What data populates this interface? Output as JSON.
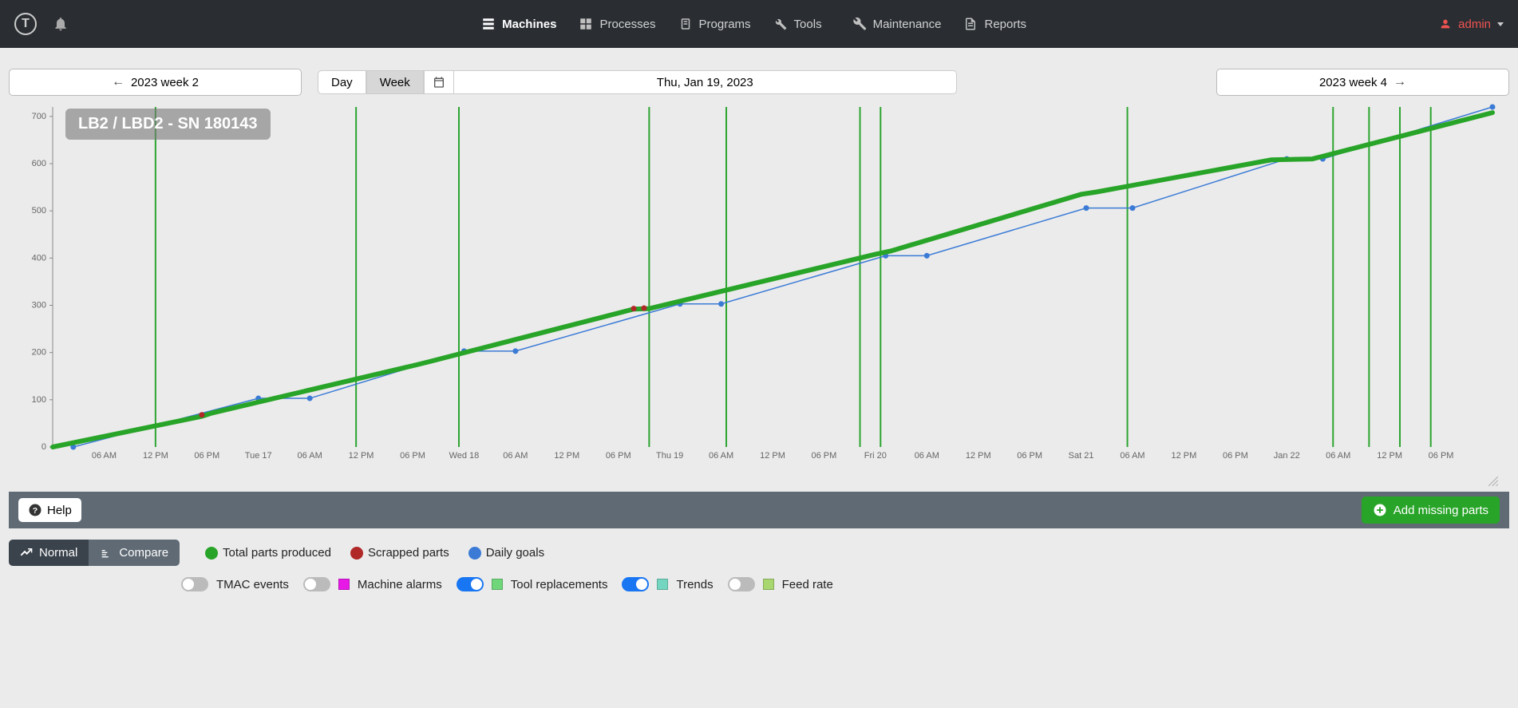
{
  "nav": {
    "items": [
      {
        "label": "Machines",
        "active": true
      },
      {
        "label": "Processes"
      },
      {
        "label": "Programs"
      },
      {
        "label": "Tools",
        "caret": true
      },
      {
        "label": "Maintenance"
      },
      {
        "label": "Reports"
      }
    ],
    "user": "admin"
  },
  "toolbar": {
    "prev": "2023 week 2",
    "next": "2023 week 4",
    "day": "Day",
    "week": "Week",
    "date_display": "Thu, Jan 19, 2023"
  },
  "chart": {
    "title": "LB2 / LBD2 - SN 180143",
    "ylim": [
      0,
      720
    ],
    "yticks": [
      0,
      100,
      200,
      300,
      400,
      500,
      600,
      700
    ],
    "xlabels": [
      "06 AM",
      "12 PM",
      "06 PM",
      "Tue 17",
      "06 AM",
      "12 PM",
      "06 PM",
      "Wed 18",
      "06 AM",
      "12 PM",
      "06 PM",
      "Thu 19",
      "06 AM",
      "12 PM",
      "06 PM",
      "Fri 20",
      "06 AM",
      "12 PM",
      "06 PM",
      "Sat 21",
      "06 AM",
      "12 PM",
      "06 PM",
      "Jan 22",
      "06 AM",
      "12 PM",
      "06 PM"
    ],
    "x_count": 28,
    "vlines_x": [
      2.0,
      5.9,
      7.9,
      11.6,
      13.1,
      15.7,
      16.1,
      20.9,
      24.9,
      25.6,
      26.2,
      26.8
    ],
    "total_series": [
      {
        "x": 0,
        "y": 0
      },
      {
        "x": 2.9,
        "y": 65
      },
      {
        "x": 3.1,
        "y": 72
      },
      {
        "x": 7.0,
        "y": 172
      },
      {
        "x": 7.3,
        "y": 180
      },
      {
        "x": 11.3,
        "y": 292
      },
      {
        "x": 11.6,
        "y": 293
      },
      {
        "x": 16.0,
        "y": 408
      },
      {
        "x": 16.3,
        "y": 415
      },
      {
        "x": 20.0,
        "y": 535
      },
      {
        "x": 20.3,
        "y": 540
      },
      {
        "x": 23.7,
        "y": 608
      },
      {
        "x": 24.5,
        "y": 610
      },
      {
        "x": 28.0,
        "y": 708
      }
    ],
    "goal_series": [
      {
        "x": 0.4,
        "y": 0
      },
      {
        "x": 4.0,
        "y": 103
      },
      {
        "x": 5.0,
        "y": 103
      },
      {
        "x": 8.0,
        "y": 203
      },
      {
        "x": 9.0,
        "y": 203
      },
      {
        "x": 12.2,
        "y": 303
      },
      {
        "x": 13.0,
        "y": 303
      },
      {
        "x": 16.2,
        "y": 405
      },
      {
        "x": 17.0,
        "y": 405
      },
      {
        "x": 20.1,
        "y": 506
      },
      {
        "x": 21.0,
        "y": 506
      },
      {
        "x": 24.0,
        "y": 610
      },
      {
        "x": 24.7,
        "y": 610
      },
      {
        "x": 28.0,
        "y": 720
      }
    ],
    "goal_points": [
      {
        "x": 0.4,
        "y": 0
      },
      {
        "x": 4.0,
        "y": 103
      },
      {
        "x": 5.0,
        "y": 103
      },
      {
        "x": 8.0,
        "y": 203
      },
      {
        "x": 9.0,
        "y": 203
      },
      {
        "x": 12.2,
        "y": 303
      },
      {
        "x": 13.0,
        "y": 303
      },
      {
        "x": 16.2,
        "y": 405
      },
      {
        "x": 17.0,
        "y": 405
      },
      {
        "x": 20.1,
        "y": 506
      },
      {
        "x": 21.0,
        "y": 506
      },
      {
        "x": 24.0,
        "y": 610
      },
      {
        "x": 24.7,
        "y": 610
      },
      {
        "x": 28.0,
        "y": 720
      }
    ],
    "scrap_points": [
      {
        "x": 2.9,
        "y": 68
      },
      {
        "x": 11.3,
        "y": 293
      },
      {
        "x": 11.5,
        "y": 294
      }
    ],
    "colors": {
      "total": "#28a428",
      "goal": "#3b7bd6",
      "scrap": "#b02828",
      "vline": "#2ca430",
      "background": "#ebebeb",
      "grid": "#cccccc",
      "axis_text": "#666666"
    },
    "font_sizes": {
      "title": 20,
      "axis": 11
    },
    "line_widths": {
      "total": 6,
      "goal": 1.5,
      "vline": 2
    },
    "marker_radius": {
      "goal": 3.5,
      "scrap": 3.5
    }
  },
  "bottombar": {
    "help": "Help",
    "add": "Add missing parts"
  },
  "footer": {
    "normal": "Normal",
    "compare": "Compare",
    "legend_series": [
      {
        "label": "Total parts produced",
        "color": "#28a428",
        "shape": "dot"
      },
      {
        "label": "Scrapped parts",
        "color": "#b02828",
        "shape": "dot"
      },
      {
        "label": "Daily goals",
        "color": "#3b7bd6",
        "shape": "dot"
      }
    ],
    "legend_toggles": [
      {
        "label": "TMAC events",
        "on": false,
        "color": null
      },
      {
        "label": "Machine alarms",
        "on": false,
        "color": "#e619e6"
      },
      {
        "label": "Tool replacements",
        "on": true,
        "color": "#6fd67a"
      },
      {
        "label": "Trends",
        "on": true,
        "color": "#74d6c0"
      },
      {
        "label": "Feed rate",
        "on": false,
        "color": "#a8d66f"
      }
    ]
  }
}
